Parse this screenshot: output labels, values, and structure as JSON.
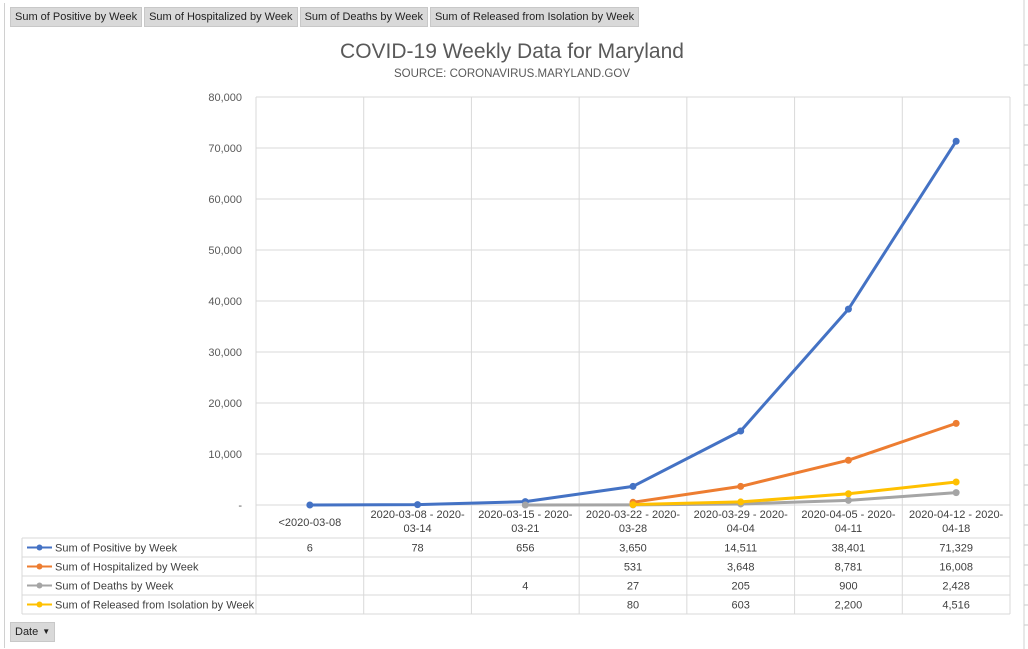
{
  "field_buttons": [
    "Sum of Positive by Week",
    "Sum of Hospitalized by Week",
    "Sum of Deaths by Week",
    "Sum of Released from Isolation by Week"
  ],
  "date_button": {
    "label": "Date",
    "icon": "filter-dropdown-icon"
  },
  "chart_data": {
    "type": "line",
    "title": "COVID-19 Weekly Data for Maryland",
    "subtitle": "SOURCE: CORONAVIRUS.MARYLAND.GOV",
    "categories": [
      [
        "<2020-03-08"
      ],
      [
        "2020-03-08 - 2020-",
        "03-14"
      ],
      [
        "2020-03-15 - 2020-",
        "03-21"
      ],
      [
        "2020-03-22 - 2020-",
        "03-28"
      ],
      [
        "2020-03-29 - 2020-",
        "04-04"
      ],
      [
        "2020-04-05 - 2020-",
        "04-11"
      ],
      [
        "2020-04-12 - 2020-",
        "04-18"
      ]
    ],
    "ylim": [
      0,
      80000
    ],
    "yticks": [
      {
        "value": 0,
        "label": "-"
      },
      {
        "value": 10000,
        "label": "10,000"
      },
      {
        "value": 20000,
        "label": "20,000"
      },
      {
        "value": 30000,
        "label": "30,000"
      },
      {
        "value": 40000,
        "label": "40,000"
      },
      {
        "value": 50000,
        "label": "50,000"
      },
      {
        "value": 60000,
        "label": "60,000"
      },
      {
        "value": 70000,
        "label": "70,000"
      },
      {
        "value": 80000,
        "label": "80,000"
      }
    ],
    "grid": true,
    "legend": "data-table-below",
    "series": [
      {
        "name": "Sum of Positive by Week",
        "color": "#4472c4",
        "values": [
          6,
          78,
          656,
          3650,
          14511,
          38401,
          71329
        ],
        "labels": [
          "6",
          "78",
          "656",
          "3,650",
          "14,511",
          "38,401",
          "71,329"
        ]
      },
      {
        "name": "Sum of Hospitalized by Week",
        "color": "#ed7d31",
        "values": [
          null,
          null,
          null,
          531,
          3648,
          8781,
          16008
        ],
        "labels": [
          "",
          "",
          "",
          "531",
          "3,648",
          "8,781",
          "16,008"
        ]
      },
      {
        "name": "Sum of Deaths by Week",
        "color": "#a5a5a5",
        "values": [
          null,
          null,
          4,
          27,
          205,
          900,
          2428
        ],
        "labels": [
          "",
          "",
          "4",
          "27",
          "205",
          "900",
          "2,428"
        ]
      },
      {
        "name": "Sum of Released from Isolation by Week",
        "color": "#ffc000",
        "values": [
          null,
          null,
          null,
          80,
          603,
          2200,
          4516
        ],
        "labels": [
          "",
          "",
          "",
          "80",
          "603",
          "2,200",
          "4,516"
        ]
      }
    ]
  }
}
